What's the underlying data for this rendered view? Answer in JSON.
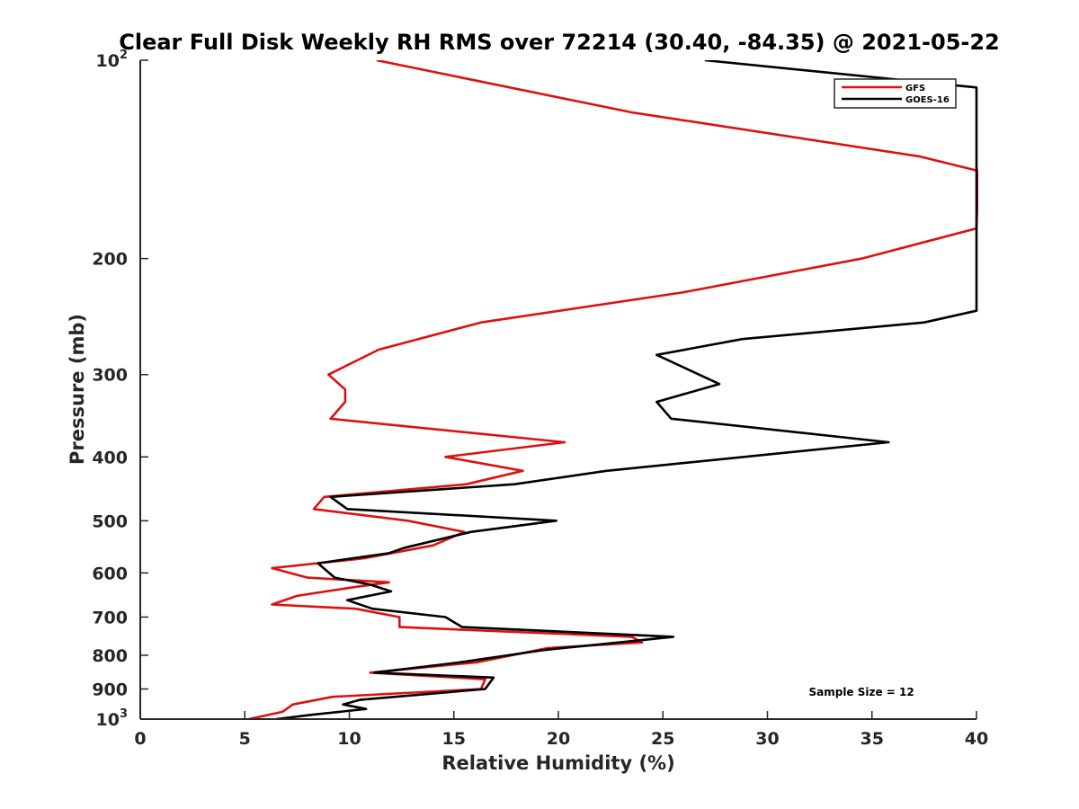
{
  "chart_data": {
    "type": "line",
    "title": "Clear Full Disk Weekly RH RMS over 72214 (30.40, -84.35) @ 2021-05-22",
    "xlabel": "Relative Humidity (%)",
    "ylabel": "Pressure (mb)",
    "xlim": [
      0,
      40
    ],
    "ylim": [
      100,
      1000
    ],
    "yscale": "log",
    "y_reversed": true,
    "grid": false,
    "legend_position": "top-right",
    "x_ticks": [
      {
        "value": 0,
        "label": "0"
      },
      {
        "value": 5,
        "label": "5"
      },
      {
        "value": 10,
        "label": "10"
      },
      {
        "value": 15,
        "label": "15"
      },
      {
        "value": 20,
        "label": "20"
      },
      {
        "value": 25,
        "label": "25"
      },
      {
        "value": 30,
        "label": "30"
      },
      {
        "value": 35,
        "label": "35"
      },
      {
        "value": 40,
        "label": "40"
      }
    ],
    "y_ticks": [
      {
        "value": 100,
        "label": "10",
        "sup": "2"
      },
      {
        "value": 200,
        "label": "200",
        "sup": ""
      },
      {
        "value": 300,
        "label": "300",
        "sup": ""
      },
      {
        "value": 400,
        "label": "400",
        "sup": ""
      },
      {
        "value": 500,
        "label": "500",
        "sup": ""
      },
      {
        "value": 600,
        "label": "600",
        "sup": ""
      },
      {
        "value": 700,
        "label": "700",
        "sup": ""
      },
      {
        "value": 800,
        "label": "800",
        "sup": ""
      },
      {
        "value": 900,
        "label": "900",
        "sup": ""
      },
      {
        "value": 1000,
        "label": "10",
        "sup": "3"
      }
    ],
    "series": [
      {
        "name": "GFS",
        "color": "#dd1111",
        "points": [
          [
            11.3,
            100
          ],
          [
            23.5,
            120
          ],
          [
            37.3,
            140
          ],
          [
            40.0,
            147
          ],
          [
            40.1,
            147
          ],
          [
            40.0,
            180
          ],
          [
            34.5,
            200
          ],
          [
            26.0,
            225
          ],
          [
            16.3,
            250
          ],
          [
            11.4,
            275
          ],
          [
            9.0,
            300
          ],
          [
            9.8,
            316
          ],
          [
            9.8,
            330
          ],
          [
            9.1,
            350
          ],
          [
            20.3,
            380
          ],
          [
            14.6,
            400
          ],
          [
            18.3,
            420
          ],
          [
            15.6,
            440
          ],
          [
            8.8,
            460
          ],
          [
            8.3,
            480
          ],
          [
            12.8,
            500
          ],
          [
            15.5,
            520
          ],
          [
            14.0,
            545
          ],
          [
            10.7,
            570
          ],
          [
            6.3,
            590
          ],
          [
            8.0,
            610
          ],
          [
            11.9,
            620
          ],
          [
            10.3,
            630
          ],
          [
            7.5,
            650
          ],
          [
            6.3,
            670
          ],
          [
            10.3,
            680
          ],
          [
            12.4,
            700
          ],
          [
            12.4,
            725
          ],
          [
            23.5,
            750
          ],
          [
            24.0,
            765
          ],
          [
            19.5,
            780
          ],
          [
            16.1,
            820
          ],
          [
            11.0,
            850
          ],
          [
            16.5,
            870
          ],
          [
            16.3,
            900
          ],
          [
            9.2,
            925
          ],
          [
            7.3,
            950
          ],
          [
            6.8,
            975
          ],
          [
            5.2,
            1000
          ]
        ]
      },
      {
        "name": "GOES-16",
        "color": "#000000",
        "points": [
          [
            27.0,
            100
          ],
          [
            40.0,
            110
          ],
          [
            40.0,
            240
          ],
          [
            37.5,
            250
          ],
          [
            28.8,
            265
          ],
          [
            24.7,
            280
          ],
          [
            27.7,
            310
          ],
          [
            24.7,
            330
          ],
          [
            25.4,
            350
          ],
          [
            35.8,
            380
          ],
          [
            22.3,
            420
          ],
          [
            17.9,
            440
          ],
          [
            9.1,
            460
          ],
          [
            9.9,
            480
          ],
          [
            19.9,
            500
          ],
          [
            15.8,
            520
          ],
          [
            12.6,
            550
          ],
          [
            11.9,
            560
          ],
          [
            8.5,
            580
          ],
          [
            9.3,
            610
          ],
          [
            11.0,
            625
          ],
          [
            12.0,
            640
          ],
          [
            9.9,
            660
          ],
          [
            11.1,
            680
          ],
          [
            14.6,
            700
          ],
          [
            15.4,
            725
          ],
          [
            25.5,
            750
          ],
          [
            23.8,
            760
          ],
          [
            19.4,
            785
          ],
          [
            15.3,
            820
          ],
          [
            11.2,
            850
          ],
          [
            16.9,
            865
          ],
          [
            16.5,
            900
          ],
          [
            10.5,
            935
          ],
          [
            9.7,
            950
          ],
          [
            10.8,
            965
          ],
          [
            8.2,
            985
          ],
          [
            6.5,
            1000
          ]
        ]
      }
    ],
    "annotations": [
      {
        "text": "Sample Size = 12",
        "x": 34.5,
        "y": 910
      }
    ]
  }
}
